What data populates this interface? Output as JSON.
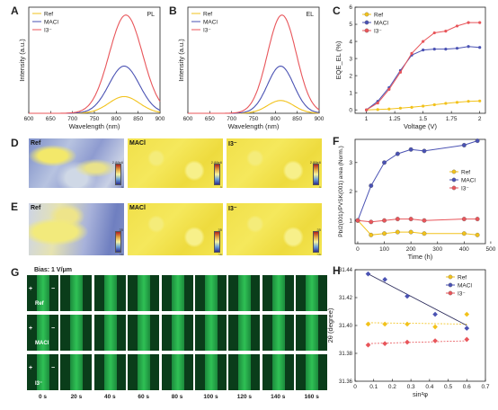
{
  "panels": {
    "A": {
      "label": "A",
      "tag": "PL",
      "xlabel": "Wavelength (nm)",
      "ylabel": "Intensity (a.u.)"
    },
    "B": {
      "label": "B",
      "tag": "EL",
      "xlabel": "Wavelength (nm)",
      "ylabel": "Intensity (a.u.)"
    },
    "C": {
      "label": "C",
      "xlabel": "Voltage (V)",
      "ylabel": "EQE_EL (%)"
    },
    "D": {
      "label": "D"
    },
    "E": {
      "label": "E"
    },
    "F": {
      "label": "F",
      "xlabel": "Time (h)",
      "ylabel": "PbI2(001)/PVSK(001) area (Norm.)"
    },
    "G": {
      "label": "G",
      "bias": "Bias: 1 V/μm",
      "plus": "+",
      "minus": "−",
      "times": [
        "0 s",
        "20 s",
        "40 s",
        "60 s",
        "80 s",
        "100 s",
        "120 s",
        "140 s",
        "160 s"
      ]
    },
    "H": {
      "label": "H",
      "xlabel": "sin²φ",
      "ylabel": "2θ (degree)"
    }
  },
  "legend": {
    "ref": "Ref",
    "maci": "MACl",
    "i3": "I3⁻"
  },
  "colors": {
    "ref": "#f2c21b",
    "maci": "#4a52b3",
    "i3": "#e8555a",
    "trend": "#2a2a5a"
  },
  "maps": {
    "D": [
      {
        "name": "Ref",
        "top": "2.88e6",
        "bottom": "0"
      },
      {
        "name": "MACl",
        "top": "2.88e6",
        "bottom": "0"
      },
      {
        "name": "I3⁻",
        "top": "2.88e6",
        "bottom": "0"
      }
    ],
    "E": [
      {
        "name": "Ref",
        "top": "35",
        "bottom": "25"
      },
      {
        "name": "MACl",
        "top": "35",
        "bottom": "25"
      },
      {
        "name": "I3⁻",
        "top": "35",
        "bottom": "25"
      }
    ]
  },
  "chart_data": [
    {
      "panel": "A",
      "type": "line",
      "xlim": [
        600,
        900
      ],
      "x_ticks": [
        600,
        650,
        700,
        750,
        800,
        850,
        900
      ],
      "xlabel": "Wavelength (nm)",
      "ylabel": "Intensity (a.u.)",
      "series": [
        {
          "name": "Ref",
          "peak_x": 818,
          "peak_y": 0.17,
          "width": 35
        },
        {
          "name": "MACl",
          "peak_x": 818,
          "peak_y": 0.48,
          "width": 35
        },
        {
          "name": "I3⁻",
          "peak_x": 822,
          "peak_y": 1.0,
          "width": 38
        }
      ]
    },
    {
      "panel": "B",
      "type": "line",
      "xlim": [
        600,
        900
      ],
      "x_ticks": [
        600,
        650,
        700,
        750,
        800,
        850,
        900
      ],
      "xlabel": "Wavelength (nm)",
      "ylabel": "Intensity (a.u.)",
      "series": [
        {
          "name": "Ref",
          "peak_x": 812,
          "peak_y": 0.13,
          "width": 30
        },
        {
          "name": "MACl",
          "peak_x": 812,
          "peak_y": 0.48,
          "width": 30
        },
        {
          "name": "I3⁻",
          "peak_x": 815,
          "peak_y": 1.0,
          "width": 33
        }
      ]
    },
    {
      "panel": "C",
      "type": "line",
      "xlim": [
        0.9,
        2.05
      ],
      "ylim": [
        -0.2,
        6
      ],
      "x_ticks": [
        1,
        1.25,
        1.5,
        1.75,
        2
      ],
      "x_tick_labels": [
        "1",
        "1.25",
        "1.5",
        "1.75",
        "2"
      ],
      "y_ticks": [
        0,
        1,
        2,
        3,
        4,
        5,
        6
      ],
      "xlabel": "Voltage (V)",
      "ylabel": "EQE_EL (%)",
      "series": [
        {
          "name": "Ref",
          "x": [
            1,
            1.1,
            1.2,
            1.3,
            1.4,
            1.5,
            1.6,
            1.7,
            1.8,
            1.9,
            2.0
          ],
          "y": [
            0,
            0.02,
            0.05,
            0.1,
            0.15,
            0.22,
            0.3,
            0.38,
            0.44,
            0.5,
            0.52
          ]
        },
        {
          "name": "MACl",
          "x": [
            1,
            1.1,
            1.2,
            1.3,
            1.4,
            1.5,
            1.6,
            1.7,
            1.8,
            1.9,
            2.0
          ],
          "y": [
            0,
            0.5,
            1.3,
            2.3,
            3.2,
            3.5,
            3.55,
            3.55,
            3.6,
            3.7,
            3.65
          ]
        },
        {
          "name": "I3⁻",
          "x": [
            1,
            1.1,
            1.2,
            1.3,
            1.4,
            1.5,
            1.6,
            1.7,
            1.8,
            1.9,
            2.0
          ],
          "y": [
            0,
            0.4,
            1.2,
            2.2,
            3.3,
            4.0,
            4.5,
            4.6,
            4.9,
            5.1,
            5.1
          ]
        }
      ]
    },
    {
      "panel": "F",
      "type": "line",
      "xlim": [
        -10,
        480
      ],
      "ylim": [
        0.2,
        3.8
      ],
      "x_ticks": [
        0,
        100,
        200,
        300,
        400,
        500
      ],
      "y_ticks": [
        1,
        2,
        3
      ],
      "xlabel": "Time (h)",
      "ylabel": "PbI2(001)/PVSK(001) area (Norm.)",
      "series": [
        {
          "name": "Ref",
          "x": [
            0,
            50,
            100,
            150,
            200,
            250,
            400,
            450
          ],
          "y": [
            1.0,
            0.5,
            0.55,
            0.6,
            0.6,
            0.55,
            0.55,
            0.5
          ]
        },
        {
          "name": "MACl",
          "x": [
            0,
            50,
            100,
            150,
            200,
            250,
            400,
            450
          ],
          "y": [
            1.0,
            2.2,
            3.0,
            3.3,
            3.45,
            3.4,
            3.6,
            3.75
          ]
        },
        {
          "name": "I3⁻",
          "x": [
            0,
            50,
            100,
            150,
            200,
            250,
            400,
            450
          ],
          "y": [
            1.0,
            0.95,
            1.0,
            1.05,
            1.05,
            1.0,
            1.05,
            1.05
          ]
        }
      ]
    },
    {
      "panel": "H",
      "type": "scatter",
      "xlim": [
        0,
        0.7
      ],
      "ylim": [
        31.36,
        31.44
      ],
      "x_ticks": [
        0,
        0.1,
        0.2,
        0.3,
        0.4,
        0.5,
        0.6,
        0.7
      ],
      "y_ticks": [
        31.36,
        31.38,
        31.4,
        31.42,
        31.44
      ],
      "xlabel": "sin²φ",
      "ylabel": "2θ (degree)",
      "series": [
        {
          "name": "Ref",
          "x": [
            0.07,
            0.16,
            0.28,
            0.43,
            0.6
          ],
          "y": [
            31.401,
            31.401,
            31.401,
            31.399,
            31.408
          ],
          "trend": [
            31.402,
            31.401
          ]
        },
        {
          "name": "MACl",
          "x": [
            0.07,
            0.16,
            0.28,
            0.43,
            0.6
          ],
          "y": [
            31.437,
            31.433,
            31.421,
            31.408,
            31.398
          ],
          "trend": [
            31.437,
            31.4
          ]
        },
        {
          "name": "I3⁻",
          "x": [
            0.07,
            0.16,
            0.28,
            0.43,
            0.6
          ],
          "y": [
            31.386,
            31.387,
            31.388,
            31.389,
            31.39
          ],
          "trend": [
            31.387,
            31.389
          ]
        }
      ]
    }
  ]
}
